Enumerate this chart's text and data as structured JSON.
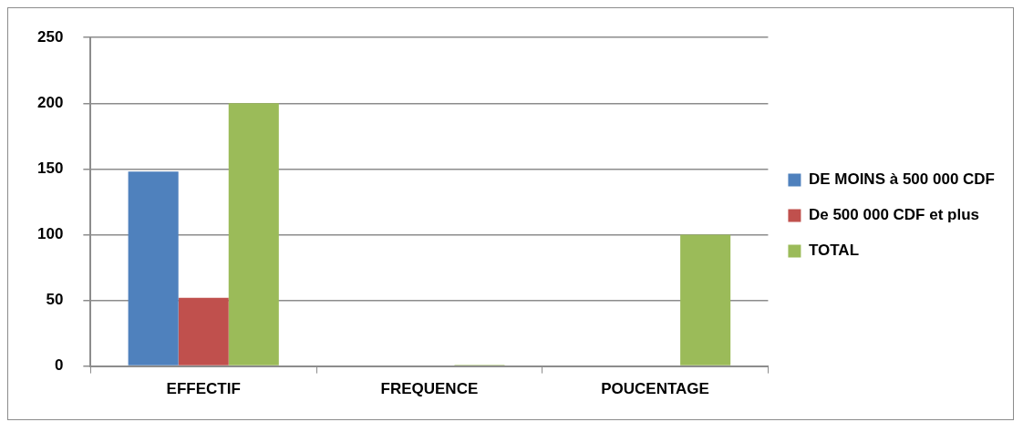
{
  "chart_data": {
    "type": "bar",
    "categories": [
      "EFFECTIF",
      "FREQUENCE",
      "POUCENTAGE"
    ],
    "series": [
      {
        "name": "DE MOINS à 500 000 CDF",
        "color": "#4f81bd",
        "values": [
          148,
          null,
          null
        ]
      },
      {
        "name": "De 500 000 CDF et plus",
        "color": "#c0504d",
        "values": [
          52,
          null,
          null
        ]
      },
      {
        "name": "TOTAL",
        "color": "#9bbb59",
        "values": [
          200,
          1,
          100
        ]
      }
    ],
    "ylim": [
      0,
      250
    ],
    "yticks": [
      0,
      50,
      100,
      150,
      200,
      250
    ],
    "grid": "y",
    "legend": "right"
  }
}
